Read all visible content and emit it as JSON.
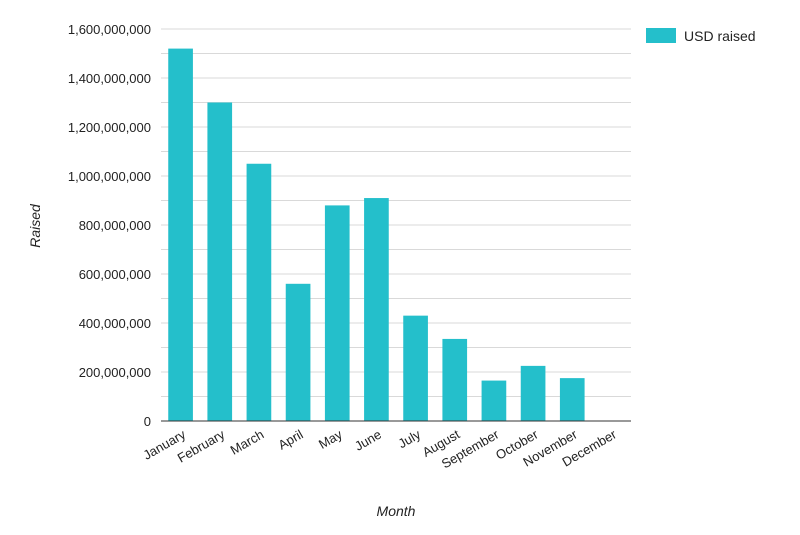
{
  "colors": {
    "bar": "#24bfcb",
    "grid": "#d9d9d9",
    "axis": "#333333",
    "text": "#222222"
  },
  "chart_data": {
    "type": "bar",
    "categories": [
      "January",
      "February",
      "March",
      "April",
      "May",
      "June",
      "July",
      "August",
      "September",
      "October",
      "November",
      "December"
    ],
    "series": [
      {
        "name": "USD raised",
        "values": [
          1520000000,
          1300000000,
          1050000000,
          560000000,
          880000000,
          910000000,
          430000000,
          335000000,
          165000000,
          225000000,
          175000000,
          0
        ]
      }
    ],
    "yticks": [
      0,
      200000000,
      400000000,
      600000000,
      800000000,
      1000000000,
      1200000000,
      1400000000,
      1600000000
    ],
    "ytick_labels": [
      "0",
      "200,000,000",
      "400,000,000",
      "600,000,000",
      "800,000,000",
      "1,000,000,000",
      "1,200,000,000",
      "1,400,000,000",
      "1,600,000,000"
    ],
    "ylim": [
      0,
      1600000000
    ],
    "xlabel": "Month",
    "ylabel": "Raised",
    "legend_position": "top-right",
    "grid": true
  }
}
